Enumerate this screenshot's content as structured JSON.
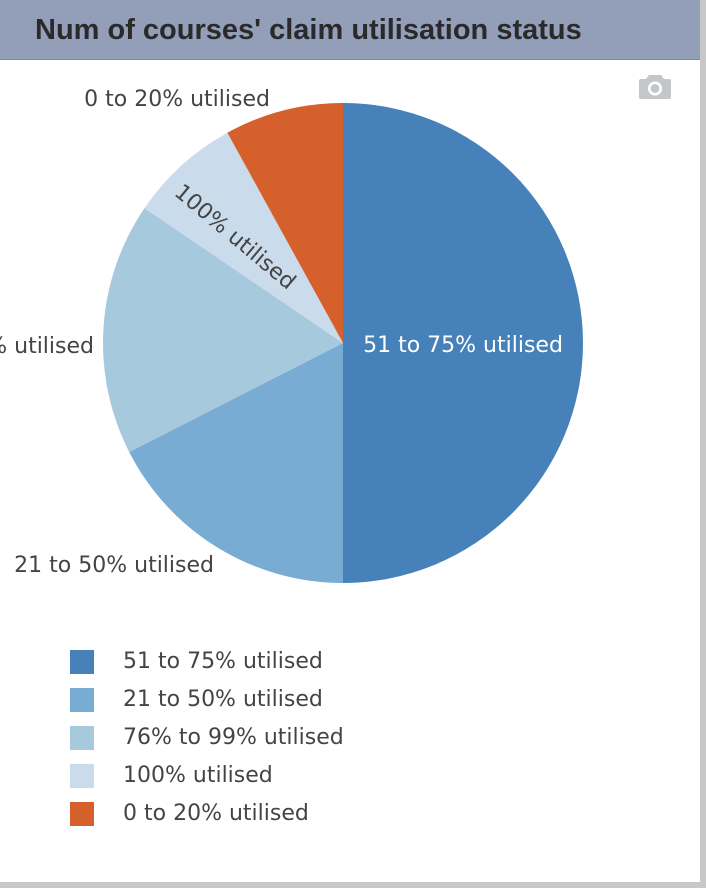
{
  "header": {
    "title": "Num of courses' claim utilisation status"
  },
  "toolbar": {
    "camera_icon": "camera-icon"
  },
  "chart_data": {
    "type": "pie",
    "title": "Num of courses' claim utilisation status",
    "slices": [
      {
        "label": "51 to 75% utilised",
        "value": 50.0,
        "color": "#4682b9",
        "label_color": "#ffffff"
      },
      {
        "label": "21 to 50% utilised",
        "value": 17.5,
        "color": "#78acd2",
        "label_color": "#444444"
      },
      {
        "label": "76% to 99% utilised",
        "value": 17.0,
        "color": "#a7c9de",
        "label_color": "#444444"
      },
      {
        "label": "100% utilised",
        "value": 7.5,
        "color": "#cadbec",
        "label_color": "#444444"
      },
      {
        "label": "0 to 20% utilised",
        "value": 8.0,
        "color": "#d6602b",
        "label_color": "#444444"
      }
    ],
    "legend_position": "bottom-left"
  }
}
